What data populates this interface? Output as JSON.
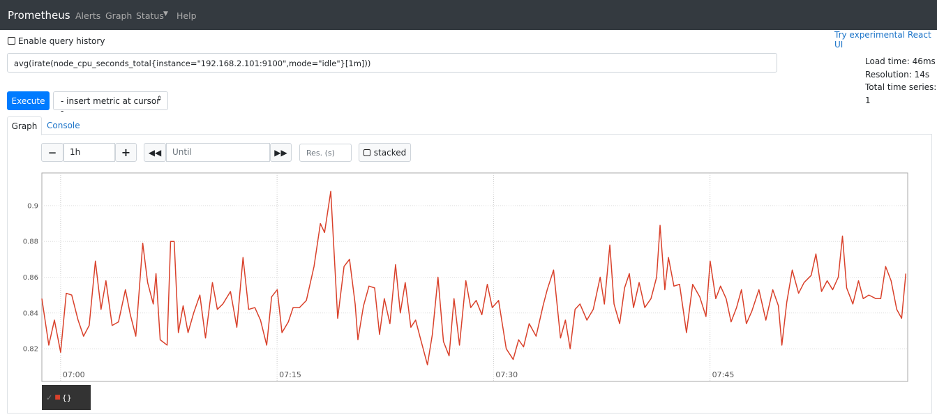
{
  "nav": {
    "brand": "Prometheus",
    "links": [
      "Alerts",
      "Graph",
      "Status",
      "Help"
    ]
  },
  "query_history_label": "Enable query history",
  "react_ui_link": "Try experimental React UI",
  "expression": "avg(irate(node_cpu_seconds_total{instance=\"192.168.2.101:9100\",mode=\"idle\"}[1m]))",
  "stats": [
    "Load time: 46ms",
    "Resolution: 14s",
    "Total time series: 1"
  ],
  "execute": "Execute",
  "metric_select": "- insert metric at cursor -",
  "tabs": [
    "Graph",
    "Console"
  ],
  "controls": {
    "range": "1h",
    "until": "Until",
    "resolution": "Res. (s)",
    "stacked": "stacked"
  },
  "chart_data": {
    "type": "line",
    "x": [
      418.7,
      419.18,
      419.57,
      420.0,
      420.39,
      420.77,
      421.21,
      421.59,
      421.98,
      422.41,
      422.8,
      423.14,
      423.57,
      424.01,
      424.49,
      424.83,
      425.21,
      425.69,
      426.03,
      426.42,
      426.61,
      426.9,
      427.38,
      427.62,
      427.87,
      428.16,
      428.49,
      428.83,
      429.22,
      429.65,
      430.04,
      430.52,
      430.86,
      431.24,
      431.77,
      432.21,
      432.64,
      433.03,
      433.46,
      433.85,
      434.28,
      434.62,
      435.01,
      435.34,
      435.78,
      436.11,
      436.55,
      437.03,
      437.56,
      438.0,
      438.29,
      438.72,
      439.2,
      439.64,
      440.02,
      440.41,
      440.6,
      440.99,
      441.37,
      441.76,
      442.1,
      442.43,
      442.82,
      443.21,
      443.54,
      443.88,
      444.27,
      444.6,
      444.99,
      445.42,
      445.76,
      446.15,
      446.53,
      446.92,
      447.26,
      447.64,
      448.08,
      448.42,
      448.8,
      449.19,
      449.57,
      449.91,
      450.35,
      450.88,
      451.36,
      451.74,
      452.08,
      452.47,
      452.95,
      453.43,
      453.72,
      454.16,
      454.64,
      454.98,
      455.31,
      455.65,
      455.99,
      456.47,
      456.91,
      457.39,
      457.68,
      458.06,
      458.35,
      458.74,
      459.08,
      459.41,
      459.7,
      460.09,
      460.48,
      460.91,
      461.3,
      461.54,
      461.87,
      462.12,
      462.5,
      462.89,
      463.37,
      463.8,
      464.29,
      464.72,
      465.01,
      465.4,
      465.73,
      466.12,
      466.46,
      466.84,
      467.18,
      467.52,
      467.9,
      468.39,
      468.87,
      469.35,
      469.74,
      469.98,
      470.32,
      470.7,
      471.14,
      471.52,
      472.01,
      472.34,
      472.73,
      473.12,
      473.5,
      473.89,
      474.18,
      474.47,
      474.9,
      475.29,
      475.62,
      476.01,
      476.5,
      476.83,
      477.17,
      477.55,
      477.94,
      478.28,
      478.57
    ],
    "series": [
      {
        "name": "{}",
        "color": "#d9412b",
        "values": [
          0.848,
          0.822,
          0.836,
          0.818,
          0.851,
          0.85,
          0.836,
          0.827,
          0.833,
          0.869,
          0.842,
          0.858,
          0.833,
          0.835,
          0.853,
          0.839,
          0.827,
          0.879,
          0.857,
          0.845,
          0.862,
          0.825,
          0.822,
          0.88,
          0.88,
          0.829,
          0.844,
          0.829,
          0.84,
          0.85,
          0.826,
          0.857,
          0.842,
          0.845,
          0.852,
          0.832,
          0.871,
          0.842,
          0.843,
          0.836,
          0.822,
          0.849,
          0.853,
          0.829,
          0.835,
          0.843,
          0.843,
          0.847,
          0.866,
          0.89,
          0.885,
          0.908,
          0.837,
          0.866,
          0.87,
          0.845,
          0.825,
          0.844,
          0.855,
          0.854,
          0.828,
          0.848,
          0.834,
          0.867,
          0.84,
          0.857,
          0.832,
          0.836,
          0.824,
          0.811,
          0.828,
          0.86,
          0.824,
          0.816,
          0.848,
          0.822,
          0.858,
          0.843,
          0.847,
          0.839,
          0.856,
          0.843,
          0.847,
          0.82,
          0.814,
          0.825,
          0.821,
          0.834,
          0.827,
          0.844,
          0.853,
          0.864,
          0.826,
          0.836,
          0.82,
          0.842,
          0.845,
          0.836,
          0.842,
          0.86,
          0.845,
          0.878,
          0.845,
          0.834,
          0.854,
          0.862,
          0.843,
          0.857,
          0.843,
          0.848,
          0.86,
          0.889,
          0.853,
          0.871,
          0.855,
          0.856,
          0.829,
          0.856,
          0.849,
          0.838,
          0.869,
          0.848,
          0.855,
          0.848,
          0.835,
          0.843,
          0.853,
          0.834,
          0.841,
          0.853,
          0.836,
          0.853,
          0.844,
          0.822,
          0.846,
          0.864,
          0.851,
          0.857,
          0.861,
          0.873,
          0.852,
          0.858,
          0.853,
          0.86,
          0.883,
          0.854,
          0.845,
          0.858,
          0.848,
          0.85,
          0.848,
          0.848,
          0.866,
          0.858,
          0.842,
          0.837,
          0.862
        ]
      }
    ],
    "xlim": [
      418.7,
      478.7
    ],
    "xticks": [
      {
        "value": 420,
        "label": "07:00"
      },
      {
        "value": 435,
        "label": "07:15"
      },
      {
        "value": 450,
        "label": "07:30"
      },
      {
        "value": 465,
        "label": "07:45"
      }
    ],
    "ylim": [
      0.8017,
      0.9183
    ],
    "yticks": [
      0.82,
      0.84,
      0.86,
      0.88,
      0.9
    ],
    "grid": true
  }
}
